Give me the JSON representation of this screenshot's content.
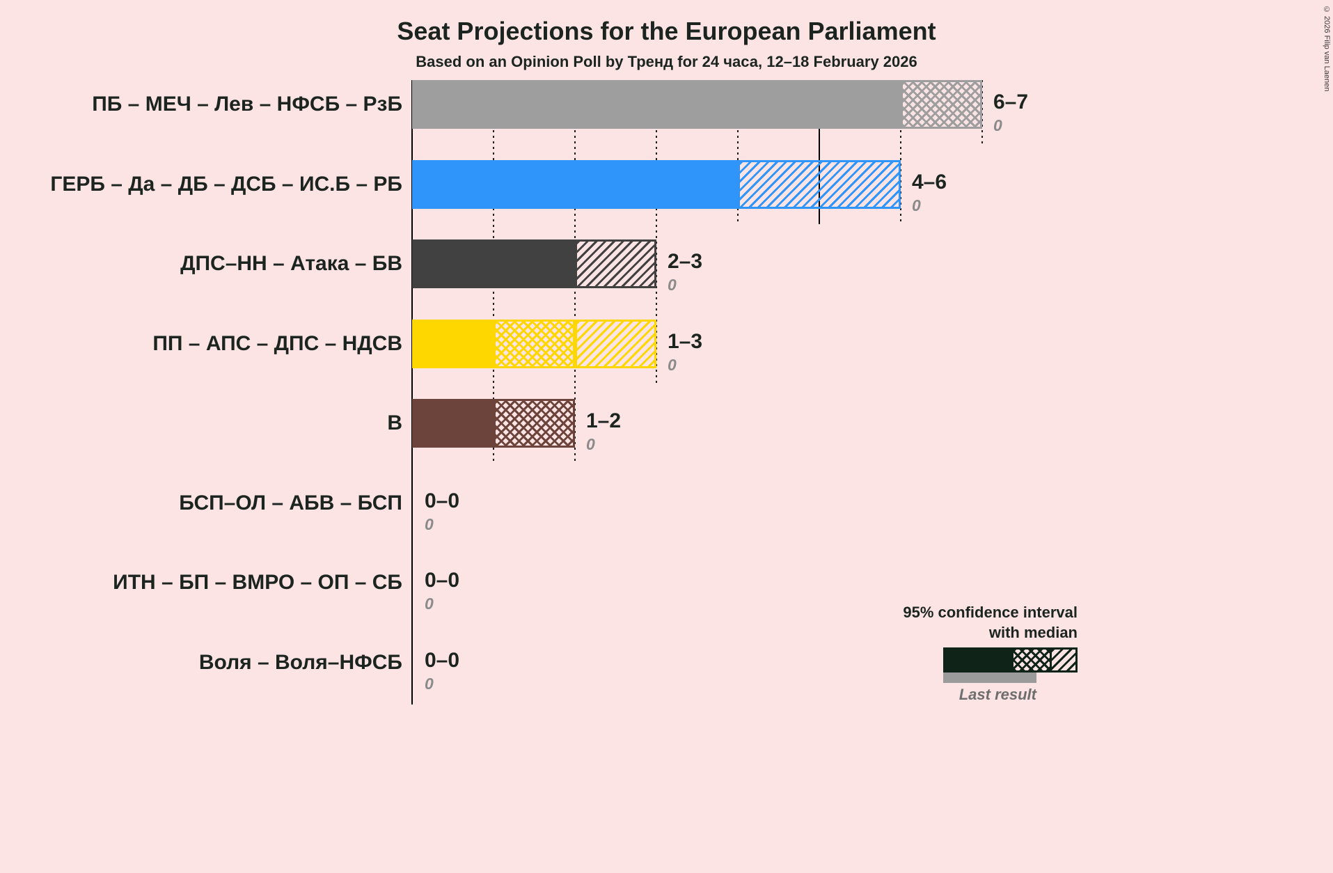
{
  "title": "Seat Projections for the European Parliament",
  "subtitle": "Based on an Opinion Poll by Тренд for 24 часа, 12–18 February 2026",
  "copyright": "© 2026 Filip van Laenen",
  "legend": {
    "ci_line1": "95% confidence interval",
    "ci_line2": "with median",
    "last_result": "Last result"
  },
  "colors": {
    "background": "#fce4e4",
    "text_dark": "#1c2420",
    "last_result_gray": "#9b9b9b",
    "legend_dark": "#0f2318",
    "muted_gray": "#8b8b8b"
  },
  "chart_data": {
    "type": "bar",
    "orientation": "horizontal",
    "unit": "seats",
    "x_axis": {
      "min": 0,
      "max": 7,
      "gridline_seats": [
        1,
        2,
        3,
        4,
        5,
        6,
        7
      ],
      "solid_gridline_seat": 5
    },
    "rows": [
      {
        "label": "ПБ – МЕЧ – Лев – НФСБ – РзБ",
        "ci_low": 6,
        "ci_high": 7,
        "range_label": "6–7",
        "last_result": "0",
        "color": "#9e9e9e",
        "segments": {
          "solid_to": 6,
          "cross": [
            6,
            7
          ],
          "diag": null
        }
      },
      {
        "label": "ГЕРБ – Да – ДБ – ДСБ – ИС.Б – РБ",
        "ci_low": 4,
        "ci_high": 6,
        "range_label": "4–6",
        "last_result": "0",
        "color": "#2f95fa",
        "segments": {
          "solid_to": 4,
          "cross": null,
          "diag": [
            4,
            6
          ]
        }
      },
      {
        "label": "ДПС–НН – Атака – БВ",
        "ci_low": 2,
        "ci_high": 3,
        "range_label": "2–3",
        "last_result": "0",
        "color": "#414141",
        "segments": {
          "solid_to": 2,
          "cross": null,
          "diag": [
            2,
            3
          ]
        }
      },
      {
        "label": "ПП – АПС – ДПС – НДСВ",
        "ci_low": 1,
        "ci_high": 3,
        "range_label": "1–3",
        "last_result": "0",
        "color": "#ffd700",
        "segments": {
          "solid_to": 1,
          "cross": [
            1,
            2
          ],
          "diag": [
            2,
            3
          ]
        }
      },
      {
        "label": "В",
        "ci_low": 1,
        "ci_high": 2,
        "range_label": "1–2",
        "last_result": "0",
        "color": "#6c443b",
        "segments": {
          "solid_to": 1,
          "cross": [
            1,
            2
          ],
          "diag": null
        }
      },
      {
        "label": "БСП–ОЛ – АБВ – БСП",
        "ci_low": 0,
        "ci_high": 0,
        "range_label": "0–0",
        "last_result": "0",
        "color": null,
        "segments": {
          "solid_to": 0,
          "cross": null,
          "diag": null
        }
      },
      {
        "label": "ИТН – БП – ВМРО – ОП – СБ",
        "ci_low": 0,
        "ci_high": 0,
        "range_label": "0–0",
        "last_result": "0",
        "color": null,
        "segments": {
          "solid_to": 0,
          "cross": null,
          "diag": null
        }
      },
      {
        "label": "Воля – Воля–НФСБ",
        "ci_low": 0,
        "ci_high": 0,
        "range_label": "0–0",
        "last_result": "0",
        "color": null,
        "segments": {
          "solid_to": 0,
          "cross": null,
          "diag": null
        }
      }
    ]
  }
}
